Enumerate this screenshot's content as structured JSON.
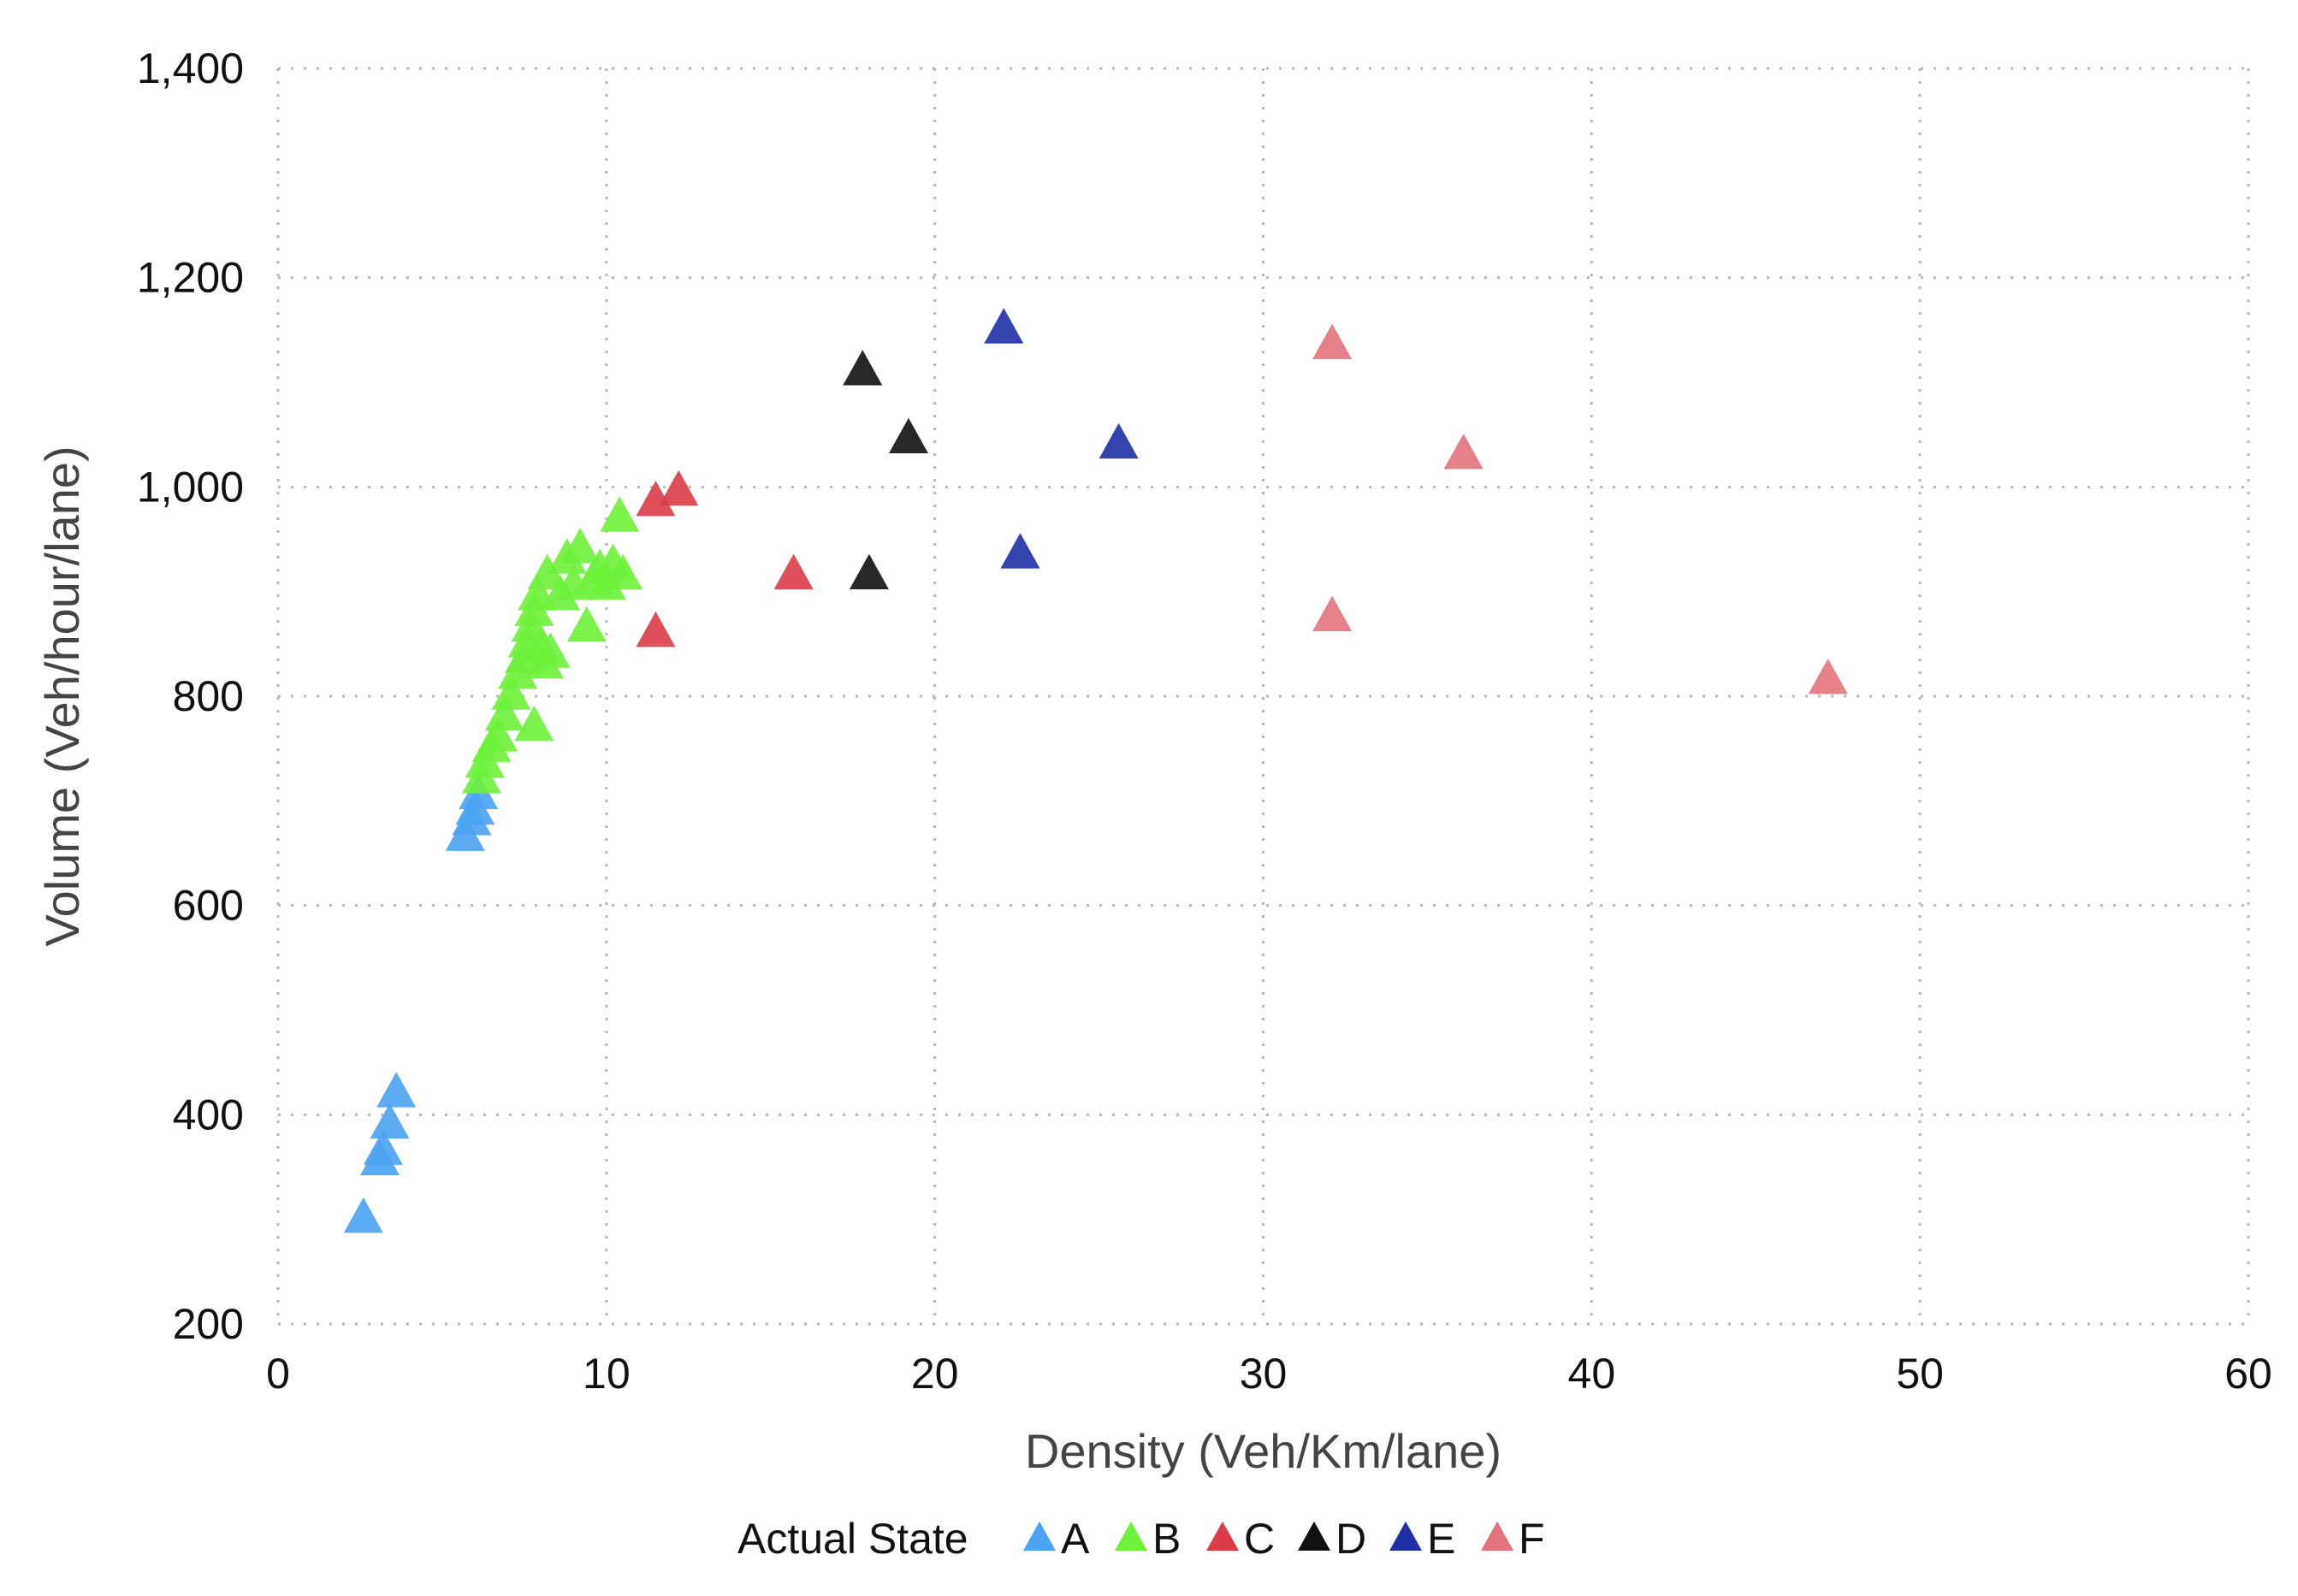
{
  "chart_data": {
    "type": "scatter",
    "title": "",
    "xlabel": "Density (Veh/Km/lane)",
    "ylabel": "Volume (Veh/hour/lane)",
    "xlim": [
      0,
      60
    ],
    "ylim": [
      200,
      1400
    ],
    "xticks": [
      0,
      10,
      20,
      30,
      40,
      50,
      60
    ],
    "yticks": [
      200,
      400,
      600,
      800,
      1000,
      1200,
      1400
    ],
    "xtick_labels": [
      "0",
      "10",
      "20",
      "30",
      "40",
      "50",
      "60"
    ],
    "ytick_labels": [
      "200",
      "400",
      "600",
      "800",
      "1,000",
      "1,200",
      "1,400"
    ],
    "grid": true,
    "marker": "triangle",
    "legend": {
      "title": "Actual State",
      "position": "bottom-center"
    },
    "series": [
      {
        "name": "A",
        "color": "#4aa3f3",
        "points": [
          [
            2.6,
            300
          ],
          [
            3.1,
            355
          ],
          [
            3.2,
            365
          ],
          [
            3.4,
            390
          ],
          [
            3.6,
            420
          ],
          [
            5.7,
            665
          ],
          [
            5.9,
            680
          ],
          [
            6.0,
            690
          ],
          [
            6.1,
            705
          ]
        ]
      },
      {
        "name": "B",
        "color": "#6ef23a",
        "points": [
          [
            6.2,
            720
          ],
          [
            6.3,
            735
          ],
          [
            6.5,
            750
          ],
          [
            6.7,
            760
          ],
          [
            6.9,
            780
          ],
          [
            7.1,
            800
          ],
          [
            7.3,
            820
          ],
          [
            7.5,
            835
          ],
          [
            7.6,
            850
          ],
          [
            7.7,
            865
          ],
          [
            7.8,
            880
          ],
          [
            7.9,
            895
          ],
          [
            8.0,
            845
          ],
          [
            8.1,
            830
          ],
          [
            8.3,
            840
          ],
          [
            8.2,
            915
          ],
          [
            8.6,
            895
          ],
          [
            8.8,
            930
          ],
          [
            9.0,
            905
          ],
          [
            9.2,
            940
          ],
          [
            9.4,
            865
          ],
          [
            9.6,
            910
          ],
          [
            9.8,
            920
          ],
          [
            10.0,
            905
          ],
          [
            10.2,
            925
          ],
          [
            10.5,
            915
          ],
          [
            10.4,
            970
          ],
          [
            7.8,
            770
          ]
        ]
      },
      {
        "name": "C",
        "color": "#dc3c47",
        "points": [
          [
            11.5,
            985
          ],
          [
            12.2,
            995
          ],
          [
            11.5,
            860
          ],
          [
            15.7,
            915
          ]
        ]
      },
      {
        "name": "D",
        "color": "#111111",
        "points": [
          [
            17.8,
            1110
          ],
          [
            19.2,
            1045
          ],
          [
            18.0,
            915
          ]
        ]
      },
      {
        "name": "E",
        "color": "#1f2fa6",
        "points": [
          [
            22.1,
            1150
          ],
          [
            25.6,
            1040
          ],
          [
            22.6,
            935
          ]
        ]
      },
      {
        "name": "F",
        "color": "#e3737c",
        "points": [
          [
            32.1,
            1135
          ],
          [
            36.1,
            1030
          ],
          [
            32.1,
            875
          ],
          [
            47.2,
            815
          ]
        ]
      }
    ]
  }
}
